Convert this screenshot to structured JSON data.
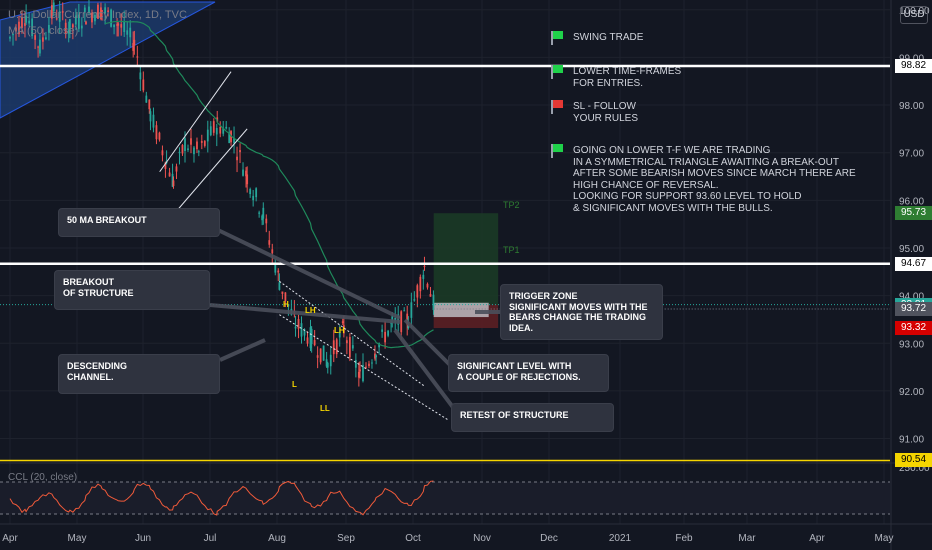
{
  "header": {
    "symbol_line": "U.S. Dollar Currency Index, 1D, TVC",
    "ma_line": "MA (50, close)",
    "ccl_line": "CCL (20, close)",
    "currency_badge": "USD"
  },
  "colors": {
    "background": "#131722",
    "up_candle": "#26a69a",
    "down_candle": "#ef5350",
    "ma_line": "#1f8a5b",
    "cci_line": "#f05a3a",
    "grid": "#1e222d",
    "white_level": "#ffffff",
    "yellow_level": "#f5d500"
  },
  "notes": [
    {
      "flag": "green",
      "text": "SWING TRADE"
    },
    {
      "flag": "green",
      "text": "LOWER TIME-FRAMES\nFOR ENTRIES."
    },
    {
      "flag": "red",
      "text": "SL - FOLLOW\nYOUR RULES"
    },
    {
      "flag": "green",
      "text": "GOING ON LOWER T-F WE ARE TRADING\nIN A SYMMETRICAL TRIANGLE AWAITING A BREAK-OUT\nAFTER SOME BEARISH MOVES SINCE MARCH THERE ARE\nHIGH CHANCE OF REVERSAL.\nLOOKING FOR SUPPORT 93.60 LEVEL TO HOLD\n& SIGNIFICANT MOVES WITH THE BULLS."
    }
  ],
  "callouts": {
    "ma_breakout": "50 MA BREAKOUT",
    "breakout_structure": "BREAKOUT\nOF STRUCTURE",
    "descending_channel": "DESCENDING\nCHANNEL.",
    "trigger_zone": "TRIGGER ZONE\nSIGNIFICANT MOVES WITH THE\nBEARS CHANGE THE TRADING\nIDEA.",
    "significant_level": "SIGNIFICANT LEVEL WITH\nA COUPLE OF REJECTIONS.",
    "retest": "RETEST OF STRUCTURE"
  },
  "wave_labels": [
    "H",
    "LH",
    "LH",
    "L",
    "LL"
  ],
  "tp_labels": [
    "TP2",
    "TP1"
  ],
  "chart_data": {
    "type": "candlestick",
    "title": "U.S. Dollar Currency Index, 1D, TVC",
    "indicator": "MA (50, close)",
    "x_tick_labels": [
      "Apr",
      "May",
      "Jun",
      "Jul",
      "Aug",
      "Sep",
      "Oct",
      "Nov",
      "Dec",
      "2021",
      "Feb",
      "Mar",
      "Apr",
      "May"
    ],
    "y_tick_labels": [
      "100.00",
      "99.00",
      "98.00",
      "97.00",
      "96.00",
      "95.00",
      "94.00",
      "93.00",
      "92.00",
      "91.00"
    ],
    "ylim": [
      90.55,
      100.1
    ],
    "price_tags": [
      {
        "label": "98.82",
        "value": 98.82,
        "color": "#ffffff",
        "text_color": "#000000"
      },
      {
        "label": "95.73",
        "value": 95.73,
        "color": "#2e7d32",
        "text_color": "#ffffff"
      },
      {
        "label": "94.67",
        "value": 94.67,
        "color": "#ffffff",
        "text_color": "#000000"
      },
      {
        "label": "93.81",
        "value": 93.81,
        "color": "#26a69a",
        "text_color": "#ffffff"
      },
      {
        "label": "93.72",
        "value": 93.72,
        "color": "#50535e",
        "text_color": "#ffffff"
      },
      {
        "label": "93.32",
        "value": 93.32,
        "color": "#d50000",
        "text_color": "#ffffff"
      },
      {
        "label": "90.54",
        "value": 90.54,
        "color": "#f5d500",
        "text_color": "#000000"
      }
    ],
    "horizontal_levels": [
      {
        "value": 98.82,
        "color": "white"
      },
      {
        "value": 94.67,
        "color": "white"
      },
      {
        "value": 90.54,
        "color": "yellow"
      }
    ],
    "trade_box": {
      "entry": 93.81,
      "stop": 93.32,
      "target1": 94.67,
      "target2": 95.73
    },
    "price_path": [
      [
        "2020-04-01",
        99.4
      ],
      [
        "2020-04-08",
        99.9
      ],
      [
        "2020-04-14",
        99.2
      ],
      [
        "2020-04-20",
        100.0
      ],
      [
        "2020-04-27",
        99.6
      ],
      [
        "2020-05-04",
        99.9
      ],
      [
        "2020-05-11",
        100.0
      ],
      [
        "2020-05-18",
        99.7
      ],
      [
        "2020-05-25",
        99.3
      ],
      [
        "2020-06-01",
        97.8
      ],
      [
        "2020-06-08",
        96.8
      ],
      [
        "2020-06-11",
        96.4
      ],
      [
        "2020-06-16",
        97.2
      ],
      [
        "2020-06-22",
        97.0
      ],
      [
        "2020-06-30",
        97.6
      ],
      [
        "2020-07-06",
        97.4
      ],
      [
        "2020-07-13",
        96.5
      ],
      [
        "2020-07-20",
        95.7
      ],
      [
        "2020-07-27",
        94.3
      ],
      [
        "2020-08-03",
        93.4
      ],
      [
        "2020-08-10",
        93.1
      ],
      [
        "2020-08-17",
        92.6
      ],
      [
        "2020-08-24",
        93.3
      ],
      [
        "2020-08-31",
        92.3
      ],
      [
        "2020-09-07",
        92.9
      ],
      [
        "2020-09-14",
        93.4
      ],
      [
        "2020-09-21",
        93.5
      ],
      [
        "2020-09-28",
        94.6
      ],
      [
        "2020-10-02",
        93.8
      ]
    ],
    "cci": {
      "label": "CCL (20, close)",
      "tick": "250.00"
    }
  }
}
